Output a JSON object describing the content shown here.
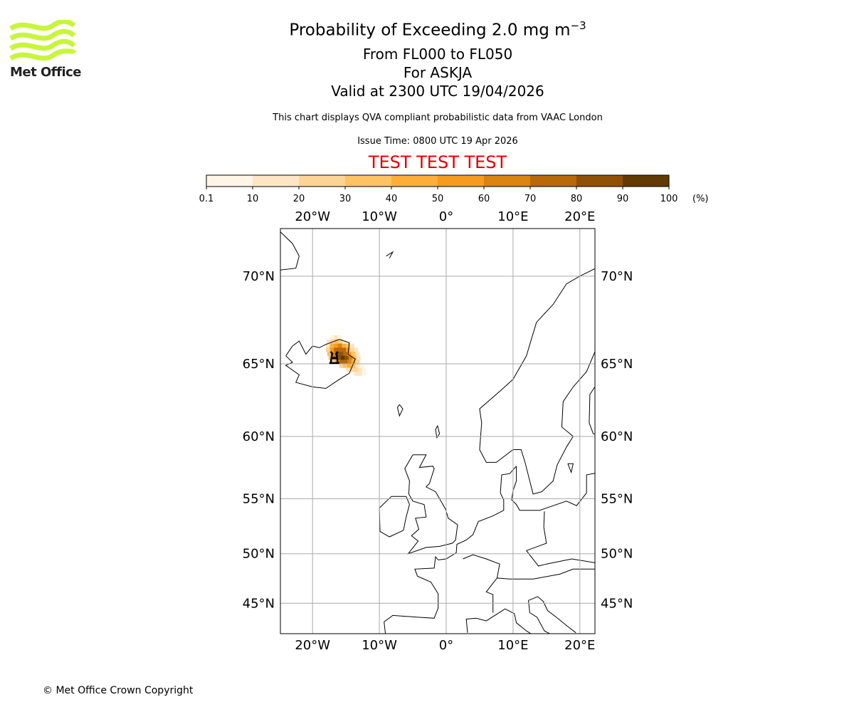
{
  "logo": {
    "text": "Met Office",
    "color": "#c8f53c"
  },
  "header": {
    "title_main": "Probability of Exceeding 2.0 mg m",
    "title_exponent": "−3",
    "level_range": "From FL000 to FL050",
    "volcano": "For ASKJA",
    "valid_time": "Valid at 2300 UTC 19/04/2026",
    "description": "This chart displays QVA compliant probabilistic data from VAAC London",
    "issue_time": "Issue Time: 0800 UTC 19 Apr 2026",
    "test_banner": "TEST TEST TEST",
    "test_color": "#e00000"
  },
  "footer": {
    "copyright": "© Met Office Crown Copyright"
  },
  "chart_data": {
    "type": "heatmap",
    "title": "Probability of Exceeding 2.0 mg m-3",
    "colorbar": {
      "ticks": [
        "0.1",
        "10",
        "20",
        "30",
        "40",
        "50",
        "60",
        "70",
        "80",
        "90",
        "100"
      ],
      "unit": "(%)",
      "bounds": [
        0.1,
        10,
        20,
        30,
        40,
        50,
        60,
        70,
        80,
        90,
        100
      ],
      "colors": [
        "#fff5e6",
        "#fee5c4",
        "#fdd495",
        "#fec262",
        "#fdae38",
        "#f59b1f",
        "#d98410",
        "#b8690a",
        "#905106",
        "#613a04"
      ]
    },
    "map": {
      "lon_range": [
        -24.7,
        22.3
      ],
      "lat_range": [
        41.5,
        73.5
      ],
      "lon_ticks": [
        {
          "v": -20,
          "label": "20°W"
        },
        {
          "v": -10,
          "label": "10°W"
        },
        {
          "v": 0,
          "label": "0°"
        },
        {
          "v": 10,
          "label": "10°E"
        },
        {
          "v": 20,
          "label": "20°E"
        }
      ],
      "lat_ticks": [
        {
          "v": 70,
          "label": "70°N"
        },
        {
          "v": 65,
          "label": "65°N"
        },
        {
          "v": 60,
          "label": "60°N"
        },
        {
          "v": 55,
          "label": "55°N"
        },
        {
          "v": 50,
          "label": "50°N"
        },
        {
          "v": 45,
          "label": "45°N"
        }
      ],
      "grid": true,
      "volcano_location": [
        -16.75,
        65.05
      ]
    },
    "grid_step": {
      "lon": 0.6,
      "lat": 0.25
    },
    "probability_rows": [
      {
        "lat": 66.5,
        "lon0": -17.4,
        "values": [
          5,
          10,
          5
        ]
      },
      {
        "lat": 66.25,
        "lon0": -17.9,
        "values": [
          10,
          25,
          30,
          20,
          5
        ]
      },
      {
        "lat": 66.0,
        "lon0": -18.0,
        "values": [
          15,
          40,
          55,
          60,
          45,
          30,
          10
        ]
      },
      {
        "lat": 65.75,
        "lon0": -18.0,
        "values": [
          20,
          55,
          70,
          75,
          70,
          50,
          25,
          10
        ]
      },
      {
        "lat": 65.5,
        "lon0": -17.8,
        "values": [
          30,
          65,
          80,
          85,
          75,
          55,
          30,
          10
        ]
      },
      {
        "lat": 65.25,
        "lon0": -17.6,
        "values": [
          35,
          70,
          85,
          90,
          80,
          60,
          35,
          15
        ]
      },
      {
        "lat": 65.0,
        "lon0": -17.2,
        "values": [
          25,
          55,
          70,
          70,
          60,
          40,
          20
        ]
      },
      {
        "lat": 64.75,
        "lon0": -16.0,
        "values": [
          20,
          35,
          40,
          30,
          15,
          5
        ]
      },
      {
        "lat": 64.5,
        "lon0": -15.0,
        "values": [
          15,
          25,
          20,
          10,
          5
        ]
      },
      {
        "lat": 64.25,
        "lon0": -13.8,
        "values": [
          10,
          15,
          5
        ]
      }
    ]
  }
}
